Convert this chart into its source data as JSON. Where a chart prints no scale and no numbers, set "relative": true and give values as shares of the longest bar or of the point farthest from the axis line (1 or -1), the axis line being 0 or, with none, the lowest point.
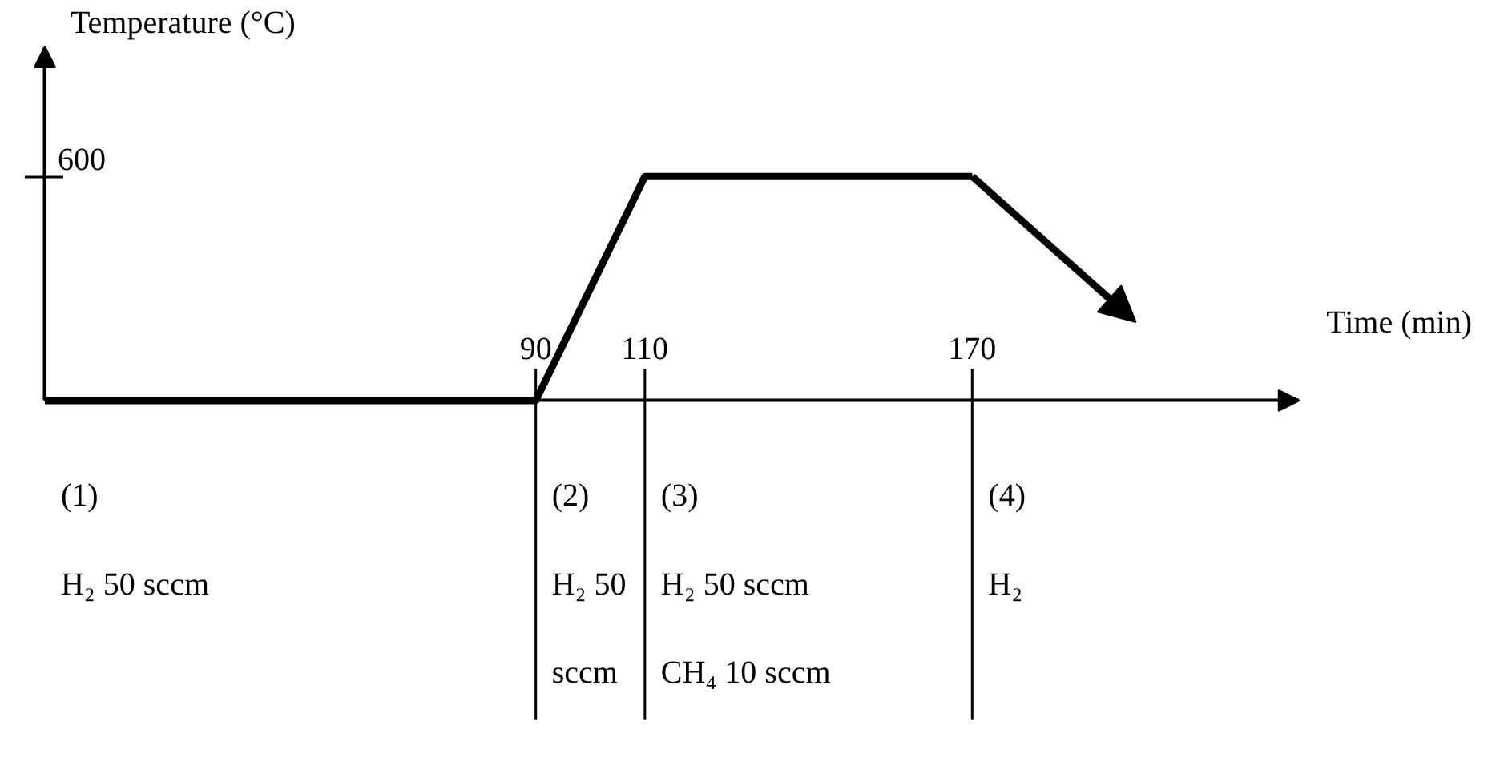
{
  "chart_data": {
    "type": "line",
    "relative": true,
    "xlabel": "Time (min)",
    "ylabel": "Temperature (°C)",
    "x": [
      0,
      90,
      110,
      170,
      200
    ],
    "series": [
      {
        "color": "#000000",
        "values": [
          0,
          0,
          1,
          1,
          0.35
        ]
      }
    ],
    "xlim": [
      0,
      230
    ],
    "xticks": [
      90,
      110,
      170
    ],
    "grid": "x",
    "annotations": [
      "600",
      "(1)",
      "H₂ 50 sccm",
      "(2)",
      "H₂ 50 sccm",
      "(3)",
      "H₂ 50 sccm",
      "CH₄ 10 sccm",
      "(4)",
      "H₂"
    ]
  }
}
